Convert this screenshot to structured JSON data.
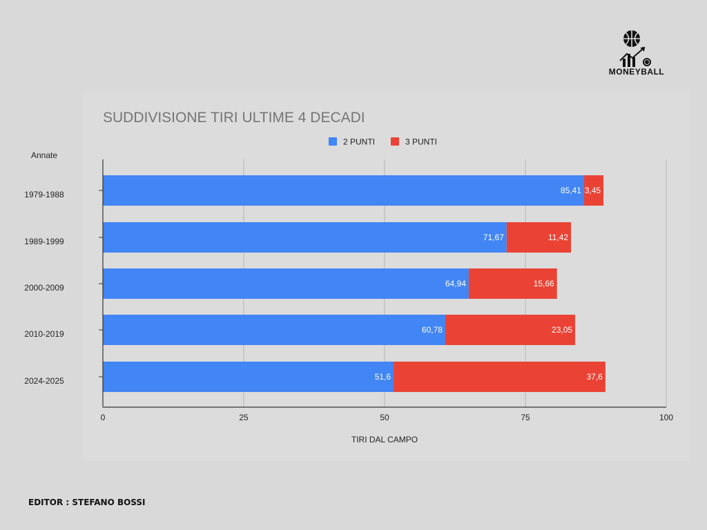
{
  "brand": {
    "name": "MONEYBALL",
    "logo_icon": "basketball-growth-chart-icon"
  },
  "footer": {
    "editor": "EDITOR : STEFANO BOSSI"
  },
  "colors": {
    "two_points": "#4285f4",
    "three_points": "#ea4335",
    "background": "#d9d9d9"
  },
  "chart_data": {
    "type": "bar",
    "orientation": "horizontal",
    "stacked": true,
    "title": "SUDDIVISIONE TIRI ULTIME 4 DECADI",
    "ylabel": "Annate",
    "xlabel": "TIRI DAL CAMPO",
    "xlim": [
      0,
      100
    ],
    "xticks": [
      "0",
      "25",
      "50",
      "75",
      "100"
    ],
    "grid": true,
    "legend_position": "top-center",
    "categories": [
      "1979-1988",
      "1989-1999",
      "2000-2009",
      "2010-2019",
      "2024-2025"
    ],
    "series": [
      {
        "name": "2 PUNTI",
        "color": "#4285f4",
        "values": [
          85.41,
          71.67,
          64.94,
          60.78,
          51.6
        ],
        "labels": [
          "85,41",
          "71,67",
          "64,94",
          "60,78",
          "51,6"
        ]
      },
      {
        "name": "3 PUNTI",
        "color": "#ea4335",
        "values": [
          3.45,
          11.42,
          15.66,
          23.05,
          37.6
        ],
        "labels": [
          "3,45",
          "11,42",
          "15,66",
          "23,05",
          "37,6"
        ]
      }
    ]
  }
}
